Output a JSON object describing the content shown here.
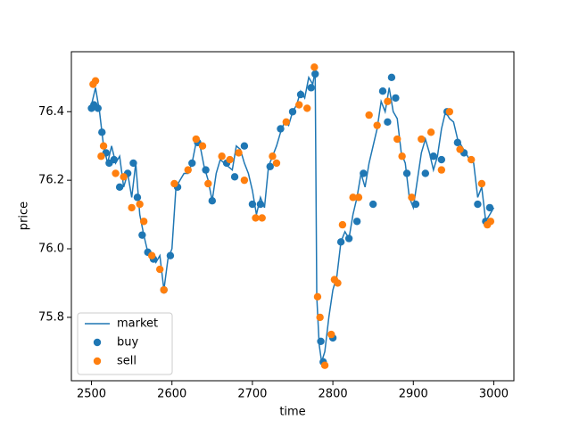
{
  "chart_data": {
    "type": "line",
    "xlabel": "time",
    "ylabel": "price",
    "xlim": [
      2475,
      3025
    ],
    "ylim": [
      75.615,
      76.575
    ],
    "xticks": [
      2500,
      2600,
      2700,
      2800,
      2900,
      3000
    ],
    "yticks": [
      75.8,
      {
        "value": 76.0,
        "label": "76.0"
      },
      76.2,
      76.4
    ],
    "legend": "lower left",
    "series": [
      {
        "name": "market",
        "type": "line",
        "color": "#1f77b4",
        "x": [
          2500,
          2505,
          2510,
          2515,
          2520,
          2525,
          2530,
          2535,
          2540,
          2545,
          2550,
          2555,
          2560,
          2565,
          2570,
          2575,
          2580,
          2585,
          2590,
          2595,
          2600,
          2605,
          2610,
          2615,
          2620,
          2625,
          2630,
          2635,
          2640,
          2645,
          2650,
          2655,
          2660,
          2665,
          2670,
          2675,
          2680,
          2685,
          2690,
          2695,
          2700,
          2705,
          2710,
          2715,
          2720,
          2725,
          2730,
          2735,
          2740,
          2745,
          2750,
          2755,
          2760,
          2765,
          2770,
          2775,
          2778,
          2780,
          2783,
          2786,
          2790,
          2795,
          2800,
          2805,
          2810,
          2815,
          2820,
          2825,
          2830,
          2835,
          2840,
          2845,
          2850,
          2855,
          2860,
          2865,
          2870,
          2875,
          2880,
          2885,
          2890,
          2895,
          2900,
          2905,
          2910,
          2915,
          2920,
          2925,
          2930,
          2935,
          2940,
          2945,
          2950,
          2955,
          2960,
          2965,
          2970,
          2975,
          2980,
          2985,
          2990,
          2995,
          3000
        ],
        "values": [
          76.42,
          76.47,
          76.4,
          76.3,
          76.25,
          76.3,
          76.25,
          76.27,
          76.18,
          76.22,
          76.15,
          76.25,
          76.1,
          76.04,
          75.99,
          75.98,
          75.96,
          75.98,
          75.88,
          75.97,
          76.0,
          76.18,
          76.2,
          76.22,
          76.22,
          76.25,
          76.31,
          76.3,
          76.24,
          76.2,
          76.14,
          76.22,
          76.26,
          76.25,
          76.24,
          76.23,
          76.3,
          76.29,
          76.25,
          76.22,
          76.17,
          76.1,
          76.15,
          76.12,
          76.24,
          76.27,
          76.3,
          76.34,
          76.37,
          76.36,
          76.4,
          76.42,
          76.46,
          76.44,
          76.5,
          76.48,
          76.52,
          75.86,
          75.72,
          75.67,
          75.7,
          75.8,
          75.88,
          75.92,
          76.02,
          76.05,
          76.03,
          76.1,
          76.15,
          76.22,
          76.18,
          76.25,
          76.3,
          76.35,
          76.43,
          76.4,
          76.47,
          76.4,
          76.38,
          76.28,
          76.25,
          76.15,
          76.12,
          76.2,
          76.28,
          76.32,
          76.28,
          76.23,
          76.27,
          76.35,
          76.4,
          76.38,
          76.37,
          76.32,
          76.3,
          76.28,
          76.26,
          76.25,
          76.15,
          76.18,
          76.08,
          76.1,
          76.12
        ]
      },
      {
        "name": "buy",
        "type": "scatter",
        "color": "#1f77b4",
        "x": [
          2500,
          2503,
          2508,
          2513,
          2518,
          2522,
          2528,
          2535,
          2545,
          2552,
          2557,
          2563,
          2570,
          2577,
          2590,
          2598,
          2607,
          2625,
          2632,
          2642,
          2650,
          2668,
          2678,
          2690,
          2700,
          2710,
          2722,
          2735,
          2750,
          2760,
          2773,
          2778,
          2785,
          2788,
          2800,
          2810,
          2820,
          2830,
          2838,
          2850,
          2862,
          2868,
          2873,
          2878,
          2892,
          2903,
          2915,
          2925,
          2935,
          2942,
          2955,
          2963,
          2980,
          2990,
          2995
        ],
        "values": [
          76.41,
          76.42,
          76.41,
          76.34,
          76.28,
          76.25,
          76.26,
          76.18,
          76.22,
          76.25,
          76.15,
          76.04,
          75.99,
          75.97,
          75.88,
          75.98,
          76.18,
          76.25,
          76.31,
          76.23,
          76.14,
          76.25,
          76.21,
          76.3,
          76.13,
          76.13,
          76.24,
          76.35,
          76.4,
          76.45,
          76.47,
          76.51,
          75.73,
          75.67,
          75.74,
          76.02,
          76.03,
          76.08,
          76.22,
          76.13,
          76.46,
          76.37,
          76.5,
          76.44,
          76.22,
          76.13,
          76.22,
          76.27,
          76.26,
          76.4,
          76.31,
          76.28,
          76.13,
          76.08,
          76.12
        ]
      },
      {
        "name": "sell",
        "type": "scatter",
        "color": "#ff7f0e",
        "x": [
          2502,
          2505,
          2512,
          2515,
          2530,
          2540,
          2550,
          2560,
          2565,
          2575,
          2585,
          2590,
          2603,
          2620,
          2630,
          2638,
          2645,
          2662,
          2672,
          2683,
          2690,
          2704,
          2712,
          2725,
          2730,
          2742,
          2758,
          2768,
          2777,
          2781,
          2784,
          2790,
          2798,
          2802,
          2806,
          2812,
          2825,
          2832,
          2845,
          2855,
          2868,
          2880,
          2886,
          2898,
          2910,
          2922,
          2935,
          2945,
          2958,
          2972,
          2985,
          2992,
          2996
        ],
        "values": [
          76.48,
          76.49,
          76.27,
          76.3,
          76.22,
          76.21,
          76.12,
          76.13,
          76.08,
          75.98,
          75.94,
          75.88,
          76.19,
          76.23,
          76.32,
          76.3,
          76.19,
          76.27,
          76.26,
          76.28,
          76.2,
          76.09,
          76.09,
          76.27,
          76.25,
          76.37,
          76.42,
          76.41,
          76.53,
          75.86,
          75.8,
          75.66,
          75.75,
          75.91,
          75.9,
          76.07,
          76.15,
          76.15,
          76.39,
          76.36,
          76.43,
          76.32,
          76.27,
          76.15,
          76.32,
          76.34,
          76.23,
          76.4,
          76.29,
          76.26,
          76.19,
          76.07,
          76.08
        ]
      }
    ]
  }
}
